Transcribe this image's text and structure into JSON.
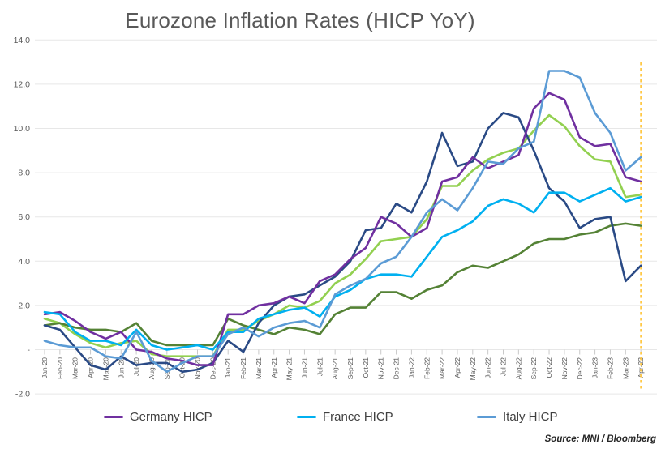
{
  "title": "Eurozone Inflation Rates (HICP YoY)",
  "source_note": "Source: MNI / Bloomberg",
  "legend": {
    "items": [
      {
        "label": "Germany HICP",
        "color": "#7030A0"
      },
      {
        "label": "France HICP",
        "color": "#00B0F0"
      },
      {
        "label": "Italy HICP",
        "color": "#5B9BD5"
      }
    ]
  },
  "chart_data": {
    "type": "line",
    "title": "Eurozone Inflation Rates (HICP YoY)",
    "xlabel": "",
    "ylabel": "",
    "ylim": [
      -2.0,
      14.0
    ],
    "grid": "horizontal",
    "legend_position": "bottom",
    "y_ticks": [
      {
        "value": 14,
        "label": "14.0"
      },
      {
        "value": 12,
        "label": "12.0"
      },
      {
        "value": 10,
        "label": "10.0"
      },
      {
        "value": 8,
        "label": "8.0"
      },
      {
        "value": 6,
        "label": "6.0"
      },
      {
        "value": 4,
        "label": "4.0"
      },
      {
        "value": 2,
        "label": "2.0"
      },
      {
        "value": 0,
        "label": "-"
      },
      {
        "value": -2,
        "label": "-2.0"
      }
    ],
    "x_tick_labels": [
      "Jan-20",
      "Feb-20",
      "Mar-20",
      "Apr-20",
      "May-20",
      "Jun-20",
      "Jul-20",
      "Aug-20",
      "Sep-20",
      "Oct-20",
      "Nov-20",
      "Dec-20",
      "Jan-21",
      "Feb-21",
      "Mar-21",
      "Apr-21",
      "May-21",
      "Jun-21",
      "Jul-21",
      "Aug-21",
      "Sep-21",
      "Oct-21",
      "Nov-21",
      "Dec-21",
      "Jan-22",
      "Feb-22",
      "Mar-22",
      "Apr-22",
      "May-22",
      "Jun-22",
      "Jul-22",
      "Aug-22",
      "Sep-22",
      "Oct-22",
      "Nov-22",
      "Dec-22",
      "Jan-23",
      "Feb-23",
      "Mar-23",
      "Apr-23"
    ],
    "annotation_line": {
      "x_label": "Apr-23",
      "style": "dashed",
      "color": "#FFC846"
    },
    "series": [
      {
        "name": "unlabeled-light-green",
        "legend_label": null,
        "color": "#92D050",
        "values": [
          1.4,
          1.2,
          0.7,
          0.3,
          0.1,
          0.3,
          0.4,
          -0.2,
          -0.3,
          -0.3,
          -0.3,
          -0.3,
          0.9,
          0.9,
          1.3,
          1.6,
          2.0,
          1.9,
          2.2,
          3.0,
          3.4,
          4.1,
          4.9,
          5.0,
          5.1,
          5.9,
          7.4,
          7.4,
          8.1,
          8.6,
          8.9,
          9.1,
          9.9,
          10.6,
          10.1,
          9.2,
          8.6,
          8.5,
          6.9,
          7.0
        ]
      },
      {
        "name": "unlabeled-dark-green",
        "legend_label": null,
        "color": "#548235",
        "values": [
          1.1,
          1.2,
          1.0,
          0.9,
          0.9,
          0.8,
          1.2,
          0.4,
          0.2,
          0.2,
          0.2,
          0.2,
          1.4,
          1.1,
          0.9,
          0.7,
          1.0,
          0.9,
          0.7,
          1.6,
          1.9,
          1.9,
          2.6,
          2.6,
          2.3,
          2.7,
          2.9,
          3.5,
          3.8,
          3.7,
          4.0,
          4.3,
          4.8,
          5.0,
          5.0,
          5.2,
          5.3,
          5.6,
          5.7,
          5.6
        ]
      },
      {
        "name": "unlabeled-navy",
        "legend_label": null,
        "color": "#2A4A85",
        "values": [
          1.1,
          0.9,
          0.1,
          -0.7,
          -0.9,
          -0.3,
          -0.7,
          -0.6,
          -0.6,
          -1.0,
          -0.9,
          -0.6,
          0.4,
          -0.1,
          1.2,
          2.0,
          2.4,
          2.5,
          2.9,
          3.3,
          4.0,
          5.4,
          5.5,
          6.6,
          6.2,
          7.6,
          9.8,
          8.3,
          8.5,
          10.0,
          10.7,
          10.5,
          9.0,
          7.3,
          6.7,
          5.5,
          5.9,
          6.0,
          3.1,
          3.8
        ]
      },
      {
        "name": "Germany HICP",
        "legend_label": "Germany HICP",
        "color": "#7030A0",
        "values": [
          1.6,
          1.7,
          1.3,
          0.8,
          0.5,
          0.8,
          0.0,
          -0.1,
          -0.4,
          -0.5,
          -0.7,
          -0.7,
          1.6,
          1.6,
          2.0,
          2.1,
          2.4,
          2.1,
          3.1,
          3.4,
          4.1,
          4.6,
          6.0,
          5.7,
          5.1,
          5.5,
          7.6,
          7.8,
          8.7,
          8.2,
          8.5,
          8.8,
          10.9,
          11.6,
          11.3,
          9.6,
          9.2,
          9.3,
          7.8,
          7.6
        ]
      },
      {
        "name": "France HICP",
        "legend_label": "France HICP",
        "color": "#00B0F0",
        "values": [
          1.7,
          1.6,
          0.8,
          0.4,
          0.4,
          0.2,
          0.9,
          0.2,
          0.0,
          0.1,
          0.2,
          0.0,
          0.8,
          0.8,
          1.4,
          1.6,
          1.8,
          1.9,
          1.5,
          2.4,
          2.7,
          3.2,
          3.4,
          3.4,
          3.3,
          4.2,
          5.1,
          5.4,
          5.8,
          6.5,
          6.8,
          6.6,
          6.2,
          7.1,
          7.1,
          6.7,
          7.0,
          7.3,
          6.7,
          6.9
        ]
      },
      {
        "name": "Italy HICP",
        "legend_label": "Italy HICP",
        "color": "#5B9BD5",
        "values": [
          0.4,
          0.2,
          0.1,
          0.1,
          -0.3,
          -0.4,
          0.8,
          -0.5,
          -1.0,
          -0.6,
          -0.3,
          -0.3,
          0.7,
          1.0,
          0.6,
          1.0,
          1.2,
          1.3,
          1.0,
          2.5,
          2.9,
          3.2,
          3.9,
          4.2,
          5.1,
          6.2,
          6.8,
          6.3,
          7.3,
          8.5,
          8.4,
          9.1,
          9.4,
          12.6,
          12.6,
          12.3,
          10.7,
          9.8,
          8.1,
          8.7
        ]
      }
    ]
  }
}
